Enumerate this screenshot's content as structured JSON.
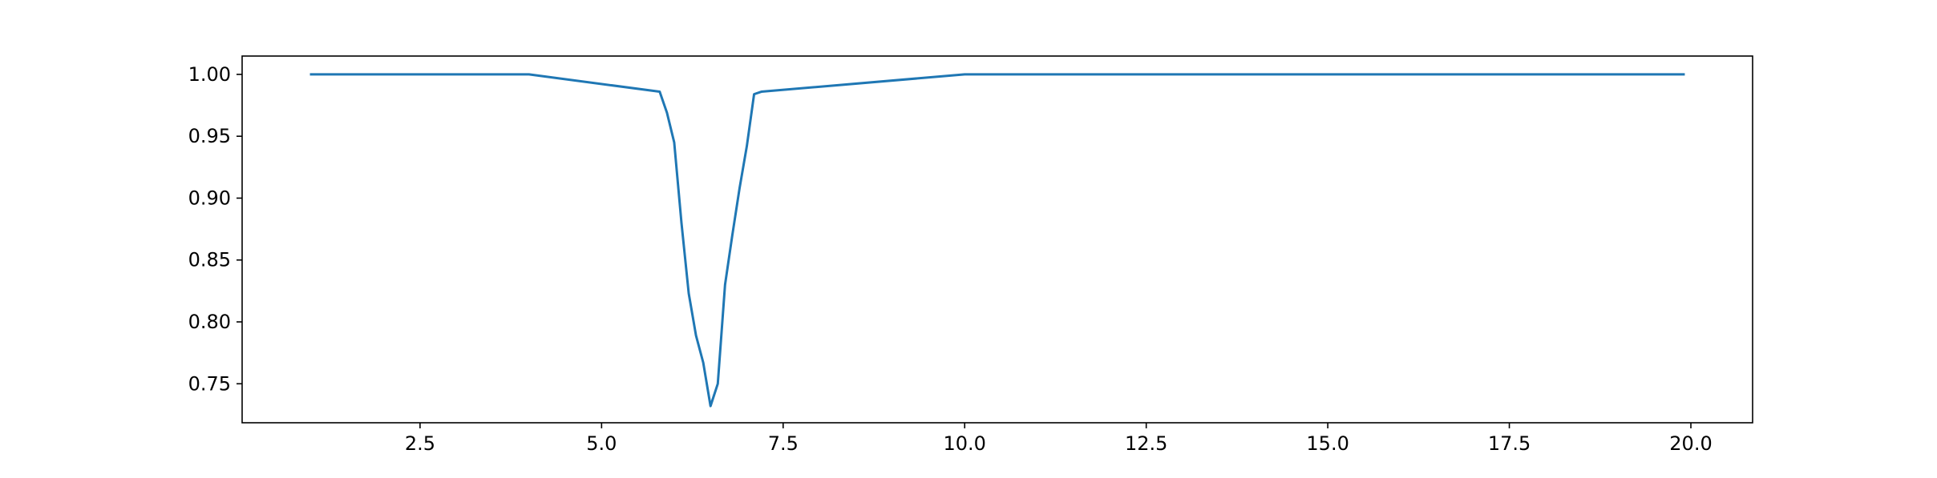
{
  "chart_data": {
    "type": "line",
    "title": "",
    "xlabel": "",
    "ylabel": "",
    "xlim": [
      0.05,
      20.85
    ],
    "ylim": [
      0.7185,
      1.0148
    ],
    "x_ticks": [
      2.5,
      5.0,
      7.5,
      10.0,
      12.5,
      15.0,
      17.5,
      20.0
    ],
    "x_tick_labels": [
      "2.5",
      "5.0",
      "7.5",
      "10.0",
      "12.5",
      "15.0",
      "17.5",
      "20.0"
    ],
    "y_ticks": [
      0.75,
      0.8,
      0.85,
      0.9,
      0.95,
      1.0
    ],
    "y_tick_labels": [
      "0.75",
      "0.80",
      "0.85",
      "0.90",
      "0.95",
      "1.00"
    ],
    "grid": false,
    "legend": false,
    "series": [
      {
        "color": "#1f77b4",
        "x": [
          1.0,
          4.0,
          5.8,
          5.9,
          6.0,
          6.1,
          6.2,
          6.3,
          6.4,
          6.5,
          6.6,
          6.7,
          6.8,
          6.9,
          7.0,
          7.1,
          7.2,
          10.0,
          19.9
        ],
        "y": [
          1.0,
          1.0,
          0.986,
          0.969,
          0.945,
          0.88,
          0.823,
          0.789,
          0.767,
          0.732,
          0.75,
          0.83,
          0.87,
          0.908,
          0.942,
          0.984,
          0.986,
          1.0,
          1.0
        ]
      }
    ]
  }
}
